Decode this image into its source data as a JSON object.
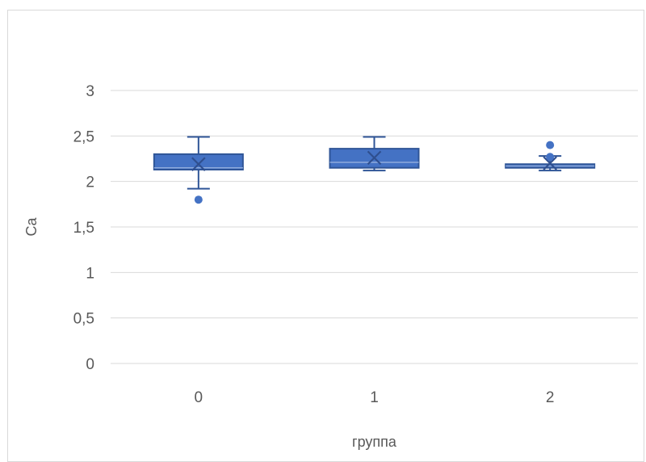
{
  "chart_data": {
    "type": "boxplot",
    "title": "",
    "xlabel": "группа",
    "ylabel": "Ca",
    "categories": [
      "0",
      "1",
      "2"
    ],
    "ylim": [
      0,
      3
    ],
    "y_ticks": [
      "0",
      "0,5",
      "1",
      "1,5",
      "2",
      "2,5",
      "3"
    ],
    "y_tick_values": [
      0,
      0.5,
      1,
      1.5,
      2,
      2.5,
      3
    ],
    "grid": true,
    "boxes": [
      {
        "category": "0",
        "whisker_low": 1.92,
        "q1": 2.13,
        "median": 2.15,
        "q3": 2.3,
        "whisker_high": 2.49,
        "mean": 2.19,
        "outliers": [
          1.8
        ]
      },
      {
        "category": "1",
        "whisker_low": 2.12,
        "q1": 2.15,
        "median": 2.21,
        "q3": 2.36,
        "whisker_high": 2.49,
        "mean": 2.26,
        "outliers": []
      },
      {
        "category": "2",
        "whisker_low": 2.12,
        "q1": 2.15,
        "median": 2.17,
        "q3": 2.19,
        "whisker_high": 2.28,
        "mean": 2.2,
        "outliers": [
          2.4,
          2.27
        ]
      }
    ],
    "colors": {
      "box_fill": "#4472c4",
      "box_edge": "#2f5597",
      "grid": "#d9d9d9",
      "text": "#595959"
    }
  }
}
